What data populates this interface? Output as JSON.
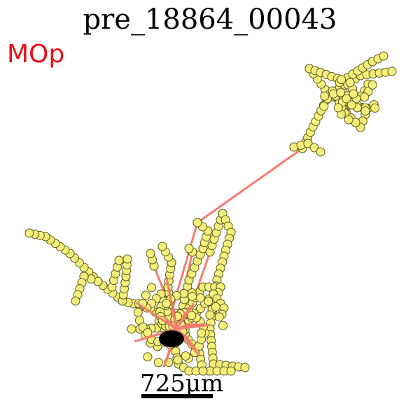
{
  "title": "pre_18864_00043",
  "region_label": "MOp",
  "scale_label": "725μm",
  "colors": {
    "edge": "#F47C6E",
    "node_fill": "#F5F07A",
    "node_stroke": "#5A5A22",
    "region": "#E8101A",
    "soma": "#000000"
  }
}
